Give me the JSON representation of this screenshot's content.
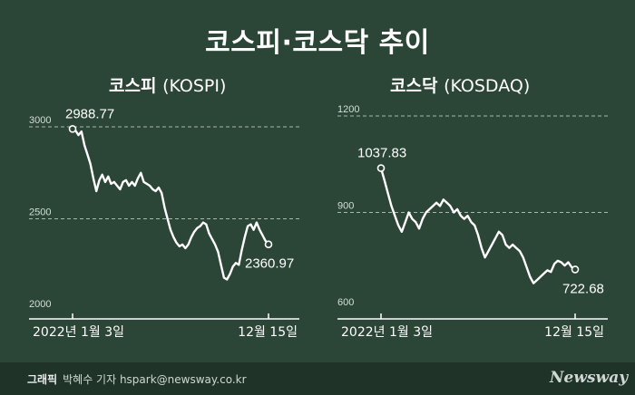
{
  "title": "코스피·코스닥 추이",
  "footer": {
    "label": "그래픽",
    "credit": "박혜수 기자 hspark@newsway.co.kr",
    "logo": "Newsway"
  },
  "chart_data": [
    {
      "type": "line",
      "title_ko": "코스피",
      "title_en": "(KOSPI)",
      "yticks": [
        3000,
        2500,
        2000
      ],
      "ylim": [
        2000,
        3000
      ],
      "xlabels": [
        "2022년 1월 3일",
        "12월 15일"
      ],
      "start_value": 2988.77,
      "end_value": 2360.97,
      "start_label": "2988.77",
      "end_label": "2360.97",
      "series": [
        [
          0,
          2988.77
        ],
        [
          1,
          2980
        ],
        [
          2,
          2955
        ],
        [
          3,
          2975
        ],
        [
          4,
          2900
        ],
        [
          5,
          2850
        ],
        [
          6,
          2800
        ],
        [
          7,
          2720
        ],
        [
          8,
          2650
        ],
        [
          9,
          2710
        ],
        [
          10,
          2740
        ],
        [
          11,
          2700
        ],
        [
          12,
          2730
        ],
        [
          13,
          2690
        ],
        [
          14,
          2700
        ],
        [
          15,
          2680
        ],
        [
          16,
          2660
        ],
        [
          17,
          2700
        ],
        [
          18,
          2710
        ],
        [
          19,
          2680
        ],
        [
          20,
          2700
        ],
        [
          21,
          2680
        ],
        [
          22,
          2720
        ],
        [
          23,
          2750
        ],
        [
          24,
          2700
        ],
        [
          25,
          2690
        ],
        [
          26,
          2680
        ],
        [
          27,
          2660
        ],
        [
          28,
          2650
        ],
        [
          29,
          2670
        ],
        [
          30,
          2640
        ],
        [
          31,
          2560
        ],
        [
          32,
          2500
        ],
        [
          33,
          2440
        ],
        [
          34,
          2400
        ],
        [
          35,
          2370
        ],
        [
          36,
          2350
        ],
        [
          37,
          2360
        ],
        [
          38,
          2340
        ],
        [
          39,
          2360
        ],
        [
          40,
          2400
        ],
        [
          41,
          2430
        ],
        [
          42,
          2450
        ],
        [
          43,
          2460
        ],
        [
          44,
          2480
        ],
        [
          45,
          2470
        ],
        [
          46,
          2420
        ],
        [
          47,
          2390
        ],
        [
          48,
          2360
        ],
        [
          49,
          2320
        ],
        [
          50,
          2250
        ],
        [
          51,
          2180
        ],
        [
          52,
          2170
        ],
        [
          53,
          2200
        ],
        [
          54,
          2240
        ],
        [
          55,
          2260
        ],
        [
          56,
          2250
        ],
        [
          57,
          2330
        ],
        [
          58,
          2400
        ],
        [
          59,
          2460
        ],
        [
          60,
          2470
        ],
        [
          61,
          2440
        ],
        [
          62,
          2480
        ],
        [
          63,
          2440
        ],
        [
          64,
          2410
        ],
        [
          65,
          2380
        ],
        [
          66,
          2360.97
        ]
      ]
    },
    {
      "type": "line",
      "title_ko": "코스닥",
      "title_en": "(KOSDAQ)",
      "yticks": [
        1200,
        900,
        600
      ],
      "ylim": [
        600,
        1200
      ],
      "xlabels": [
        "2022년 1월 3일",
        "12월 15일"
      ],
      "start_value": 1037.83,
      "end_value": 722.68,
      "start_label": "1037.83",
      "end_label": "722.68",
      "series": [
        [
          0,
          1037.83
        ],
        [
          1,
          1000
        ],
        [
          2,
          960
        ],
        [
          3,
          920
        ],
        [
          4,
          890
        ],
        [
          5,
          860
        ],
        [
          6,
          840
        ],
        [
          7,
          870
        ],
        [
          8,
          900
        ],
        [
          9,
          880
        ],
        [
          10,
          870
        ],
        [
          11,
          850
        ],
        [
          12,
          880
        ],
        [
          13,
          900
        ],
        [
          14,
          910
        ],
        [
          15,
          920
        ],
        [
          16,
          930
        ],
        [
          17,
          920
        ],
        [
          18,
          940
        ],
        [
          19,
          930
        ],
        [
          20,
          920
        ],
        [
          21,
          900
        ],
        [
          22,
          910
        ],
        [
          23,
          890
        ],
        [
          24,
          880
        ],
        [
          25,
          890
        ],
        [
          26,
          870
        ],
        [
          27,
          860
        ],
        [
          28,
          830
        ],
        [
          29,
          790
        ],
        [
          30,
          760
        ],
        [
          31,
          780
        ],
        [
          32,
          800
        ],
        [
          33,
          820
        ],
        [
          34,
          840
        ],
        [
          35,
          830
        ],
        [
          36,
          800
        ],
        [
          37,
          790
        ],
        [
          38,
          800
        ],
        [
          39,
          790
        ],
        [
          40,
          780
        ],
        [
          41,
          760
        ],
        [
          42,
          730
        ],
        [
          43,
          700
        ],
        [
          44,
          680
        ],
        [
          45,
          690
        ],
        [
          46,
          700
        ],
        [
          47,
          710
        ],
        [
          48,
          720
        ],
        [
          49,
          715
        ],
        [
          50,
          740
        ],
        [
          51,
          750
        ],
        [
          52,
          745
        ],
        [
          53,
          735
        ],
        [
          54,
          745
        ],
        [
          55,
          730
        ],
        [
          56,
          722.68
        ]
      ]
    }
  ]
}
